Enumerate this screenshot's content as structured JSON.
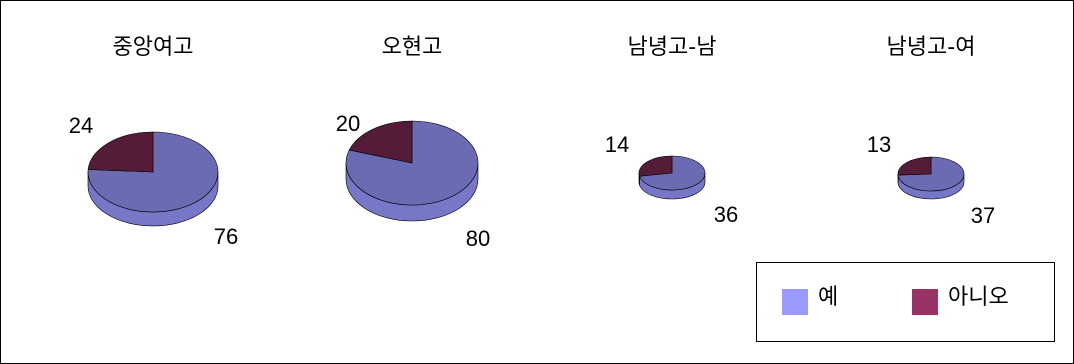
{
  "chart_data": {
    "type": "pie",
    "style": "3d",
    "legend_position": "bottom-right",
    "categories": [
      "예",
      "아니오"
    ],
    "colors": {
      "예": "#9999ff",
      "아니오": "#993366"
    },
    "pies": [
      {
        "title": "중앙여고",
        "values": [
          76,
          24
        ],
        "labels": [
          "76",
          "24"
        ]
      },
      {
        "title": "오현고",
        "values": [
          80,
          20
        ],
        "labels": [
          "80",
          "20"
        ]
      },
      {
        "title": "남녕고-남",
        "values": [
          36,
          14
        ],
        "labels": [
          "36",
          "14"
        ]
      },
      {
        "title": "남녕고-여",
        "values": [
          37,
          13
        ],
        "labels": [
          "37",
          "13"
        ]
      }
    ]
  }
}
